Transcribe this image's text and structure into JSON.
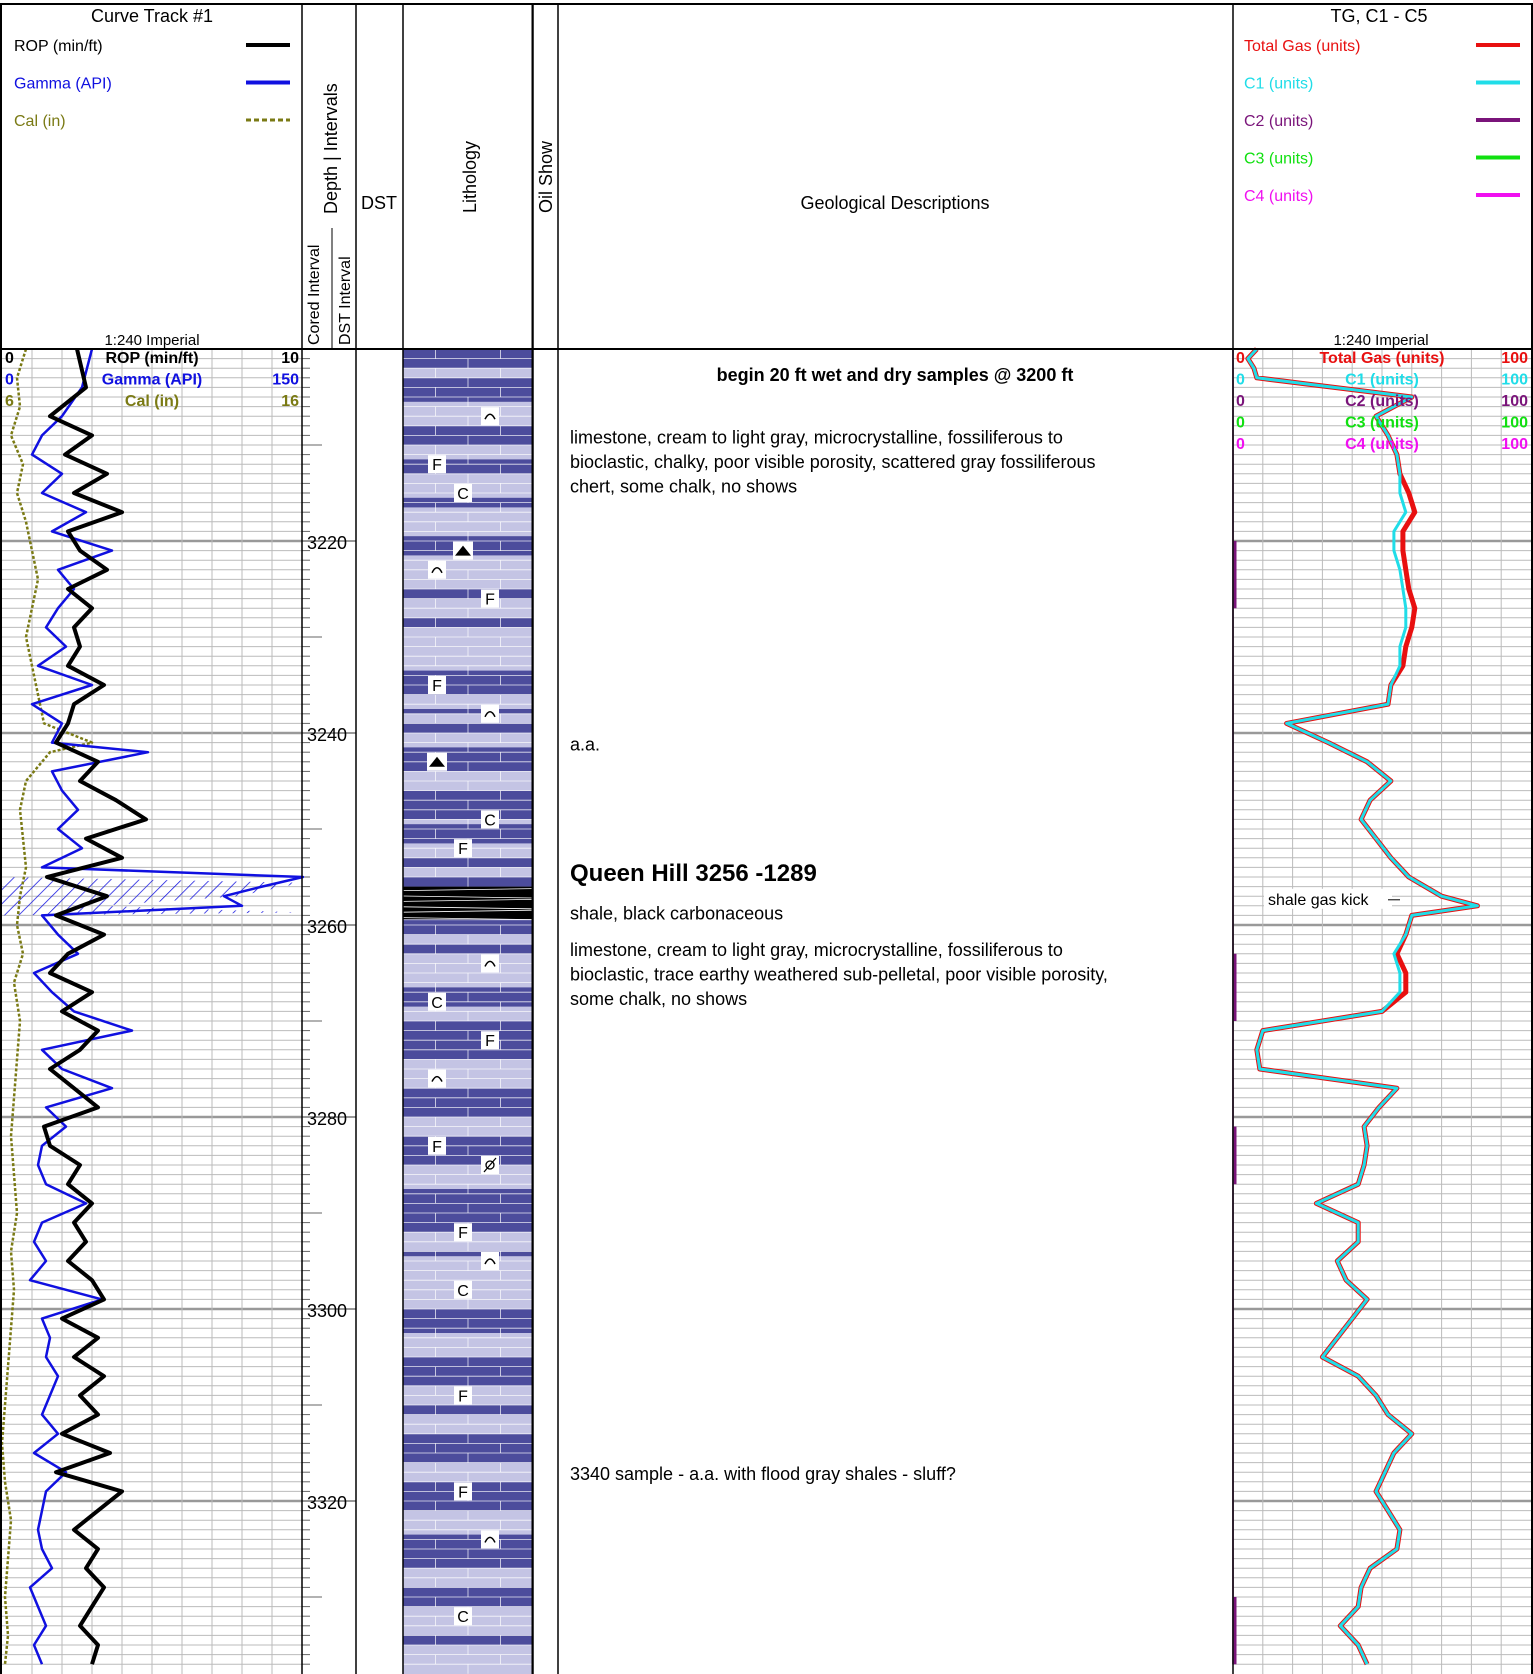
{
  "header": {
    "curve_track_title": "Curve Track #1",
    "curve_legend": [
      {
        "label": "ROP (min/ft)",
        "color": "#000000",
        "style": "solid"
      },
      {
        "label": "Gamma (API)",
        "color": "#1010e0",
        "style": "solid"
      },
      {
        "label": "Cal (in)",
        "color": "#7a7a14",
        "style": "dashed"
      }
    ],
    "scale_label": "1:240 Imperial",
    "cored_interval": "Cored Interval",
    "dst_interval": "DST Interval",
    "depth_intervals": "Depth | Intervals",
    "dst": "DST",
    "lithology": "Lithology",
    "oil_show": "Oil Show",
    "geo_desc": "Geological Descriptions",
    "gas_track_title": "TG, C1 - C5",
    "gas_legend": [
      {
        "label": "Total Gas (units)",
        "color": "#e81010"
      },
      {
        "label": "C1 (units)",
        "color": "#20dde8"
      },
      {
        "label": "C2 (units)",
        "color": "#7a147a"
      },
      {
        "label": "C3 (units)",
        "color": "#10e010"
      },
      {
        "label": "C4 (units)",
        "color": "#f010f0"
      }
    ]
  },
  "curve_scales": [
    {
      "label": "ROP (min/ft)",
      "min": "0",
      "max": "10",
      "color": "#000000"
    },
    {
      "label": "Gamma (API)",
      "min": "0",
      "max": "150",
      "color": "#1010e0"
    },
    {
      "label": "Cal (in)",
      "min": "6",
      "max": "16",
      "color": "#7a7a14"
    }
  ],
  "gas_scales": [
    {
      "label": "Total Gas (units)",
      "min": "0",
      "max": "100",
      "color": "#e81010"
    },
    {
      "label": "C1 (units)",
      "min": "0",
      "max": "100",
      "color": "#20dde8"
    },
    {
      "label": "C2 (units)",
      "min": "0",
      "max": "100",
      "color": "#7a147a"
    },
    {
      "label": "C3 (units)",
      "min": "0",
      "max": "100",
      "color": "#10e010"
    },
    {
      "label": "C4 (units)",
      "min": "0",
      "max": "100",
      "color": "#f010f0"
    }
  ],
  "depth_labels": [
    "3220",
    "3240",
    "3260",
    "3280",
    "3300",
    "3320"
  ],
  "descriptions": [
    {
      "depth": 3202.5,
      "lines": [
        "begin 20 ft wet and dry samples @ 3200 ft"
      ],
      "style": "bold-center"
    },
    {
      "depth": 3209,
      "lines": [
        "limestone, cream to light gray, microcrystalline, fossiliferous to",
        "bioclastic, chalky, poor visible porosity, scattered gray fossiliferous",
        "chert, some chalk, no shows"
      ],
      "style": "normal"
    },
    {
      "depth": 3241,
      "lines": [
        "a.a."
      ],
      "style": "normal"
    },
    {
      "depth": 3254.6,
      "lines": [
        "Queen Hill  3256  -1289"
      ],
      "style": "heading"
    },
    {
      "depth": 3258.6,
      "lines": [
        "shale, black carbonaceous"
      ],
      "style": "normal"
    },
    {
      "depth": 3262.4,
      "lines": [
        "limestone, cream to light gray, microcrystalline, fossiliferous to",
        "bioclastic, trace earthy weathered sub-pelletal, poor visible porosity,",
        "some chalk, no shows"
      ],
      "style": "normal"
    },
    {
      "depth": 3317,
      "lines": [
        "3340 sample - a.a. with flood gray shales - sluff?"
      ],
      "style": "normal"
    }
  ],
  "annotations": [
    {
      "text": "shale gas kick",
      "depth": 3258
    }
  ],
  "lithology_symbols": [
    {
      "depth": 3207,
      "sym": "arc",
      "pos": 1
    },
    {
      "depth": 3212,
      "sym": "F",
      "pos": 0
    },
    {
      "depth": 3215,
      "sym": "C",
      "pos": 0.5
    },
    {
      "depth": 3221,
      "sym": "tri",
      "pos": 0.5
    },
    {
      "depth": 3223,
      "sym": "arc",
      "pos": 0
    },
    {
      "depth": 3226,
      "sym": "F",
      "pos": 1
    },
    {
      "depth": 3235,
      "sym": "F",
      "pos": 0
    },
    {
      "depth": 3238,
      "sym": "arc",
      "pos": 1
    },
    {
      "depth": 3243,
      "sym": "tri",
      "pos": 0
    },
    {
      "depth": 3249,
      "sym": "C",
      "pos": 1
    },
    {
      "depth": 3252,
      "sym": "F",
      "pos": 0.5
    },
    {
      "depth": 3264,
      "sym": "arc",
      "pos": 1
    },
    {
      "depth": 3268,
      "sym": "C",
      "pos": 0
    },
    {
      "depth": 3272,
      "sym": "F",
      "pos": 1
    },
    {
      "depth": 3276,
      "sym": "arc",
      "pos": 0
    },
    {
      "depth": 3283,
      "sym": "F",
      "pos": 0
    },
    {
      "depth": 3285,
      "sym": "pin",
      "pos": 1
    },
    {
      "depth": 3292,
      "sym": "F",
      "pos": 0.5
    },
    {
      "depth": 3295,
      "sym": "arc",
      "pos": 1
    },
    {
      "depth": 3298,
      "sym": "C",
      "pos": 0.5
    },
    {
      "depth": 3309,
      "sym": "F",
      "pos": 0.5
    },
    {
      "depth": 3319,
      "sym": "F",
      "pos": 0.5
    },
    {
      "depth": 3324,
      "sym": "arc",
      "pos": 1
    },
    {
      "depth": 3332,
      "sym": "C",
      "pos": 0.5
    }
  ],
  "lithology_colors": {
    "dark": "#4c4c9c",
    "light": "#c4c4e4",
    "shale": "#000000"
  },
  "chart_data": [
    {
      "type": "line",
      "title": "Curve Track #1",
      "x_axis": "depth (ft)",
      "xlim": [
        3200,
        3337
      ],
      "series": [
        {
          "name": "ROP (min/ft)",
          "color": "#000000",
          "range": [
            0,
            10
          ],
          "x": [
            3200,
            3204,
            3207,
            3209,
            3211,
            3213,
            3215,
            3217,
            3219,
            3221,
            3223,
            3225,
            3227,
            3229,
            3231,
            3233,
            3235,
            3237,
            3239,
            3241,
            3243,
            3245,
            3247,
            3249,
            3251,
            3253,
            3255,
            3257,
            3259,
            3261,
            3263,
            3265,
            3267,
            3269,
            3271,
            3273,
            3275,
            3277,
            3279,
            3281,
            3283,
            3285,
            3287,
            3289,
            3291,
            3293,
            3295,
            3297,
            3299,
            3301,
            3303,
            3305,
            3307,
            3309,
            3311,
            3313,
            3315,
            3317,
            3319,
            3321,
            3323,
            3325,
            3327,
            3329,
            3331,
            3333,
            3335,
            3337
          ],
          "values": [
            2.5,
            2.8,
            1.6,
            3.0,
            2.1,
            3.5,
            2.4,
            4.0,
            2.2,
            2.6,
            3.5,
            2.2,
            3.0,
            2.4,
            2.6,
            2.2,
            3.4,
            2.4,
            2.2,
            1.8,
            3.2,
            2.6,
            3.8,
            4.8,
            2.8,
            4.0,
            1.5,
            3.5,
            1.8,
            3.4,
            2.2,
            1.6,
            3.0,
            2.0,
            3.2,
            2.6,
            1.6,
            2.4,
            3.2,
            1.4,
            1.6,
            2.6,
            2.2,
            3.0,
            2.4,
            2.8,
            2.2,
            3.0,
            3.4,
            2.0,
            3.2,
            2.4,
            3.4,
            2.6,
            3.2,
            2.0,
            3.6,
            1.8,
            4.0,
            3.2,
            2.4,
            3.2,
            2.8,
            3.4,
            3.0,
            2.6,
            3.2,
            3.0
          ]
        },
        {
          "name": "Gamma (API)",
          "color": "#1010e0",
          "range": [
            0,
            150
          ],
          "x": [
            3200,
            3204,
            3207,
            3209,
            3211,
            3213,
            3215,
            3217,
            3219,
            3221,
            3223,
            3225,
            3227,
            3229,
            3231,
            3233,
            3235,
            3237,
            3239,
            3241,
            3242,
            3244,
            3246,
            3248,
            3250,
            3252,
            3254,
            3255,
            3256,
            3257,
            3258,
            3259,
            3261,
            3263,
            3265,
            3267,
            3269,
            3271,
            3273,
            3275,
            3277,
            3279,
            3281,
            3283,
            3285,
            3287,
            3289,
            3291,
            3293,
            3295,
            3297,
            3299,
            3301,
            3303,
            3305,
            3307,
            3309,
            3311,
            3313,
            3315,
            3317,
            3319,
            3321,
            3323,
            3325,
            3327,
            3329,
            3331,
            3333,
            3335,
            3337
          ],
          "values": [
            45,
            40,
            30,
            20,
            15,
            30,
            20,
            42,
            25,
            55,
            28,
            36,
            28,
            22,
            32,
            18,
            45,
            15,
            30,
            25,
            73,
            25,
            30,
            38,
            28,
            40,
            20,
            156,
            130,
            111,
            120,
            20,
            28,
            38,
            16,
            25,
            36,
            65,
            20,
            30,
            55,
            22,
            32,
            20,
            18,
            22,
            42,
            20,
            16,
            22,
            14,
            50,
            20,
            24,
            22,
            28,
            24,
            20,
            28,
            16,
            32,
            22,
            20,
            18,
            20,
            25,
            14,
            18,
            22,
            16,
            20
          ]
        },
        {
          "name": "Cal (in)",
          "color": "#7a7a14",
          "range": [
            6,
            16
          ],
          "x": [
            3200,
            3203,
            3206,
            3209,
            3212,
            3215,
            3218,
            3221,
            3224,
            3227,
            3230,
            3233,
            3236,
            3239,
            3241,
            3242,
            3245,
            3248,
            3251,
            3254,
            3257,
            3260,
            3263,
            3266,
            3270,
            3274,
            3278,
            3282,
            3286,
            3290,
            3294,
            3298,
            3302,
            3306,
            3310,
            3314,
            3318,
            3322,
            3326,
            3330,
            3334,
            3337
          ],
          "values": [
            6.8,
            6.5,
            6.6,
            6.3,
            6.7,
            6.5,
            6.8,
            7.0,
            7.2,
            7.0,
            6.8,
            7.0,
            7.2,
            7.4,
            9.0,
            7.6,
            6.8,
            6.6,
            6.7,
            6.8,
            6.6,
            6.5,
            6.7,
            6.4,
            6.6,
            6.5,
            6.4,
            6.3,
            6.4,
            6.5,
            6.3,
            6.4,
            6.3,
            6.2,
            6.1,
            6.0,
            6.1,
            6.3,
            6.2,
            6.1,
            6.2,
            6.1
          ]
        }
      ]
    },
    {
      "type": "line",
      "title": "TG, C1 - C5",
      "x_axis": "depth (ft)",
      "xlim": [
        3200,
        3337
      ],
      "series": [
        {
          "name": "Total Gas (units)",
          "color": "#e81010",
          "range": [
            0,
            100
          ],
          "x": [
            3200,
            3201,
            3202,
            3203,
            3205,
            3207,
            3209,
            3211,
            3213,
            3215,
            3217,
            3219,
            3221,
            3223,
            3225,
            3227,
            3229,
            3231,
            3233,
            3235,
            3237,
            3239,
            3241,
            3243,
            3245,
            3247,
            3249,
            3251,
            3253,
            3255,
            3257,
            3258,
            3259,
            3261,
            3263,
            3265,
            3267,
            3269,
            3271,
            3273,
            3275,
            3277,
            3279,
            3281,
            3283,
            3285,
            3287,
            3289,
            3291,
            3293,
            3295,
            3297,
            3299,
            3301,
            3303,
            3305,
            3307,
            3309,
            3311,
            3313,
            3315,
            3317,
            3319,
            3321,
            3323,
            3325,
            3327,
            3329,
            3331,
            3333,
            3335,
            3337
          ],
          "values": [
            8,
            5,
            7,
            8,
            60,
            48,
            52,
            55,
            56,
            59,
            61,
            57,
            57,
            58,
            59,
            61,
            60,
            58,
            57,
            53,
            52,
            18,
            32,
            45,
            53,
            46,
            43,
            48,
            53,
            59,
            70,
            82,
            60,
            58,
            55,
            58,
            58,
            50,
            10,
            8,
            9,
            55,
            49,
            44,
            45,
            44,
            42,
            28,
            42,
            42,
            35,
            38,
            45,
            40,
            35,
            30,
            42,
            48,
            52,
            60,
            54,
            51,
            48,
            52,
            56,
            55,
            46,
            43,
            42,
            36,
            42,
            45
          ]
        },
        {
          "name": "C1 (units)",
          "color": "#20dde8",
          "range": [
            0,
            100
          ],
          "x": [
            3200,
            3201,
            3202,
            3203,
            3205,
            3207,
            3209,
            3211,
            3213,
            3215,
            3217,
            3219,
            3221,
            3223,
            3225,
            3227,
            3229,
            3231,
            3233,
            3235,
            3237,
            3239,
            3241,
            3243,
            3245,
            3247,
            3249,
            3251,
            3253,
            3255,
            3257,
            3258,
            3259,
            3261,
            3263,
            3265,
            3267,
            3269,
            3271,
            3273,
            3275,
            3277,
            3279,
            3281,
            3283,
            3285,
            3287,
            3289,
            3291,
            3293,
            3295,
            3297,
            3299,
            3301,
            3303,
            3305,
            3307,
            3309,
            3311,
            3313,
            3315,
            3317,
            3319,
            3321,
            3323,
            3325,
            3327,
            3329,
            3331,
            3333,
            3335,
            3337
          ],
          "values": [
            8,
            5,
            7,
            8,
            60,
            48,
            52,
            55,
            56,
            56,
            58,
            54,
            54,
            56,
            57,
            58,
            58,
            56,
            56,
            53,
            52,
            18,
            32,
            45,
            53,
            46,
            43,
            48,
            53,
            59,
            70,
            82,
            60,
            58,
            54,
            56,
            56,
            50,
            10,
            8,
            9,
            55,
            49,
            44,
            45,
            44,
            42,
            28,
            42,
            42,
            35,
            38,
            45,
            40,
            35,
            30,
            42,
            48,
            52,
            60,
            54,
            51,
            48,
            52,
            56,
            55,
            46,
            43,
            42,
            36,
            42,
            45
          ]
        },
        {
          "name": "C2 (units)",
          "color": "#7a147a",
          "range": [
            0,
            100
          ],
          "x": [
            3200,
            3337
          ],
          "values": [
            0,
            0
          ]
        },
        {
          "name": "C3 (units)",
          "color": "#10e010",
          "range": [
            0,
            100
          ],
          "x": [
            3200,
            3337
          ],
          "values": [
            0,
            0
          ]
        },
        {
          "name": "C4 (units)",
          "color": "#f010f0",
          "range": [
            0,
            100
          ],
          "x": [
            3200,
            3337
          ],
          "values": [
            0,
            0
          ]
        }
      ]
    }
  ]
}
